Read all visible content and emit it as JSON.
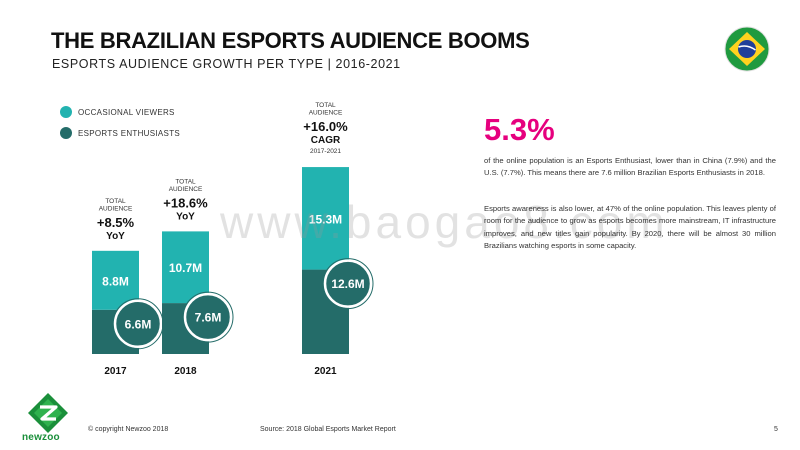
{
  "header": {
    "title": "THE BRAZILIAN ESPORTS AUDIENCE BOOMS",
    "subtitle": "ESPORTS AUDIENCE GROWTH PER TYPE | 2016-2021"
  },
  "flag_icon": "brazil-flag-icon",
  "colors": {
    "occasional": "#22b3b0",
    "enthusiasts": "#246c69",
    "accent": "#e6007e",
    "logo_green": "#1a8f3a"
  },
  "chart_data": {
    "type": "bar",
    "stacked": true,
    "categories": [
      "2017",
      "2018",
      "2021"
    ],
    "series": [
      {
        "name": "ESPORTS ENTHUSIASTS",
        "values": [
          6.6,
          7.6,
          12.6
        ],
        "labels": [
          "6.6M",
          "7.6M",
          "12.6M"
        ]
      },
      {
        "name": "OCCASIONAL VIEWERS",
        "values": [
          8.8,
          10.7,
          15.3
        ],
        "labels": [
          "8.8M",
          "10.7M",
          "15.3M"
        ]
      }
    ],
    "annotations": [
      {
        "category": "2017",
        "line1": "TOTAL",
        "line2": "AUDIENCE",
        "value": "+8.5%",
        "unit": "YoY",
        "note": ""
      },
      {
        "category": "2018",
        "line1": "TOTAL",
        "line2": "AUDIENCE",
        "value": "+18.6%",
        "unit": "YoY",
        "note": ""
      },
      {
        "category": "2021",
        "line1": "TOTAL",
        "line2": "AUDIENCE",
        "value": "+16.0%",
        "unit": "CAGR",
        "note": "2017-2021"
      }
    ],
    "legend": "top-left",
    "grid": false
  },
  "side": {
    "stat": "5.3%",
    "para1": "of the online population is an Esports Enthusiast, lower than in China (7.9%) and the U.S. (7.7%). This means there are 7.6 million Brazilian Esports Enthusiasts in 2018.",
    "para2": "Esports awareness is also lower, at 47% of the online population. This leaves plenty of room for the audience to grow as esports becomes more mainstream, IT infrastructure improves, and new titles gain popularity. By 2020, there will be almost 30 million Brazilians watching esports in some capacity."
  },
  "watermark": "www.baogao8.com",
  "footer": {
    "logo_text": "newzoo",
    "logo_icon": "newzoo-logo-icon",
    "copyright": "© copyright Newzoo 2018",
    "source": "Source: 2018 Global Esports Market Report",
    "page": "5"
  }
}
